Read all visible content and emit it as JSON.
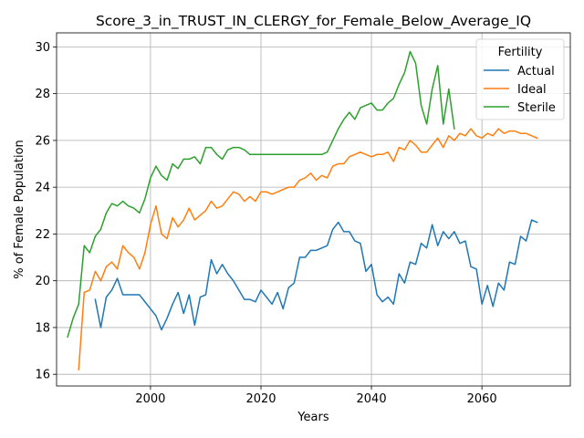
{
  "chart_data": {
    "type": "line",
    "title": "Score_3_in_TRUST_IN_CLERGY_for_Female_Below_Average_IQ",
    "xlabel": "Years",
    "ylabel": "% of Female Population",
    "xlim": [
      1983,
      2076
    ],
    "ylim": [
      15.5,
      30.6
    ],
    "xticks": [
      2000,
      2020,
      2040,
      2060
    ],
    "yticks": [
      16,
      18,
      20,
      22,
      24,
      26,
      28,
      30
    ],
    "grid": true,
    "legend": {
      "title": "Fertility",
      "placement": "top-right"
    },
    "series": [
      {
        "name": "Actual",
        "color": "#1f77b4",
        "x": [
          1990,
          1991,
          1992,
          1993,
          1994,
          1995,
          1996,
          1997,
          1998,
          1999,
          2000,
          2001,
          2002,
          2003,
          2004,
          2005,
          2006,
          2007,
          2008,
          2009,
          2010,
          2011,
          2012,
          2013,
          2014,
          2015,
          2016,
          2017,
          2018,
          2019,
          2020,
          2021,
          2022,
          2023,
          2024,
          2025,
          2026,
          2027,
          2028,
          2029,
          2030,
          2031,
          2032,
          2033,
          2034,
          2035,
          2036,
          2037,
          2038,
          2039,
          2040,
          2041,
          2042,
          2043,
          2044,
          2045,
          2046,
          2047,
          2048,
          2049,
          2050,
          2051,
          2052,
          2053,
          2054,
          2055,
          2056,
          2057,
          2058,
          2059,
          2060,
          2061,
          2062,
          2063,
          2064,
          2065,
          2066,
          2067,
          2068,
          2069,
          2070
        ],
        "y": [
          19.2,
          18.0,
          19.3,
          19.6,
          20.1,
          19.4,
          19.4,
          19.4,
          19.4,
          19.1,
          18.8,
          18.5,
          17.9,
          18.4,
          19.0,
          19.5,
          18.6,
          19.4,
          18.1,
          19.3,
          19.4,
          20.9,
          20.3,
          20.7,
          20.3,
          20.0,
          19.6,
          19.2,
          19.2,
          19.1,
          19.6,
          19.3,
          19.0,
          19.5,
          18.8,
          19.7,
          19.9,
          21.0,
          21.0,
          21.3,
          21.3,
          21.4,
          21.5,
          22.2,
          22.5,
          22.1,
          22.1,
          21.7,
          21.6,
          20.4,
          20.7,
          19.4,
          19.1,
          19.3,
          19.0,
          20.3,
          19.9,
          20.8,
          20.7,
          21.6,
          21.4,
          22.4,
          21.5,
          22.1,
          21.8,
          22.1,
          21.6,
          21.7,
          20.6,
          20.5,
          19.0,
          19.8,
          18.9,
          19.9,
          19.6,
          20.8,
          20.7,
          21.9,
          21.7,
          22.6,
          22.5
        ]
      },
      {
        "name": "Ideal",
        "color": "#ff7f0e",
        "x": [
          1987,
          1988,
          1989,
          1990,
          1991,
          1992,
          1993,
          1994,
          1995,
          1996,
          1997,
          1998,
          1999,
          2000,
          2001,
          2002,
          2003,
          2004,
          2005,
          2006,
          2007,
          2008,
          2009,
          2010,
          2011,
          2012,
          2013,
          2014,
          2015,
          2016,
          2017,
          2018,
          2019,
          2020,
          2021,
          2022,
          2023,
          2024,
          2025,
          2026,
          2027,
          2028,
          2029,
          2030,
          2031,
          2032,
          2033,
          2034,
          2035,
          2036,
          2037,
          2038,
          2039,
          2040,
          2041,
          2042,
          2043,
          2044,
          2045,
          2046,
          2047,
          2048,
          2049,
          2050,
          2051,
          2052,
          2053,
          2054,
          2055,
          2056,
          2057,
          2058,
          2059,
          2060,
          2061,
          2062,
          2063,
          2064,
          2065,
          2066,
          2067,
          2068,
          2069,
          2070
        ],
        "y": [
          16.2,
          19.5,
          19.6,
          20.4,
          20.0,
          20.6,
          20.8,
          20.5,
          21.5,
          21.2,
          21.0,
          20.5,
          21.2,
          22.4,
          23.2,
          22.0,
          21.8,
          22.7,
          22.3,
          22.6,
          23.1,
          22.6,
          22.8,
          23.0,
          23.4,
          23.1,
          23.2,
          23.5,
          23.8,
          23.7,
          23.4,
          23.6,
          23.4,
          23.8,
          23.8,
          23.7,
          23.8,
          23.9,
          24.0,
          24.0,
          24.3,
          24.4,
          24.6,
          24.3,
          24.5,
          24.4,
          24.9,
          25.0,
          25.0,
          25.3,
          25.4,
          25.5,
          25.4,
          25.3,
          25.4,
          25.4,
          25.5,
          25.1,
          25.7,
          25.6,
          26.0,
          25.8,
          25.5,
          25.5,
          25.8,
          26.1,
          25.7,
          26.2,
          26.0,
          26.3,
          26.2,
          26.5,
          26.2,
          26.1,
          26.3,
          26.2,
          26.5,
          26.3,
          26.4,
          26.4,
          26.3,
          26.3,
          26.2,
          26.1
        ]
      },
      {
        "name": "Sterile",
        "color": "#2ca02c",
        "x": [
          1985,
          1986,
          1987,
          1988,
          1989,
          1990,
          1991,
          1992,
          1993,
          1994,
          1995,
          1996,
          1997,
          1998,
          1999,
          2000,
          2001,
          2002,
          2003,
          2004,
          2005,
          2006,
          2007,
          2008,
          2009,
          2010,
          2011,
          2012,
          2013,
          2014,
          2015,
          2016,
          2017,
          2018,
          2019,
          2020,
          2021,
          2022,
          2023,
          2024,
          2025,
          2026,
          2027,
          2028,
          2029,
          2030,
          2031,
          2032,
          2033,
          2034,
          2035,
          2036,
          2037,
          2038,
          2039,
          2040,
          2041,
          2042,
          2043,
          2044,
          2045,
          2046,
          2047,
          2048,
          2049,
          2050,
          2051,
          2052,
          2053,
          2054,
          2055
        ],
        "y": [
          17.6,
          18.4,
          19.0,
          21.5,
          21.2,
          21.9,
          22.2,
          22.9,
          23.3,
          23.2,
          23.4,
          23.2,
          23.1,
          22.9,
          23.5,
          24.4,
          24.9,
          24.5,
          24.3,
          25.0,
          24.8,
          25.2,
          25.2,
          25.3,
          25.0,
          25.7,
          25.7,
          25.4,
          25.2,
          25.6,
          25.7,
          25.7,
          25.6,
          25.4,
          25.4,
          25.4,
          25.4,
          25.4,
          25.4,
          25.4,
          25.4,
          25.4,
          25.4,
          25.4,
          25.4,
          25.4,
          25.4,
          25.5,
          26.0,
          26.5,
          26.9,
          27.2,
          26.9,
          27.4,
          27.5,
          27.6,
          27.3,
          27.3,
          27.6,
          27.8,
          28.4,
          28.9,
          29.8,
          29.3,
          27.5,
          26.7,
          28.2,
          29.2,
          26.7,
          28.2,
          26.5
        ]
      }
    ]
  }
}
